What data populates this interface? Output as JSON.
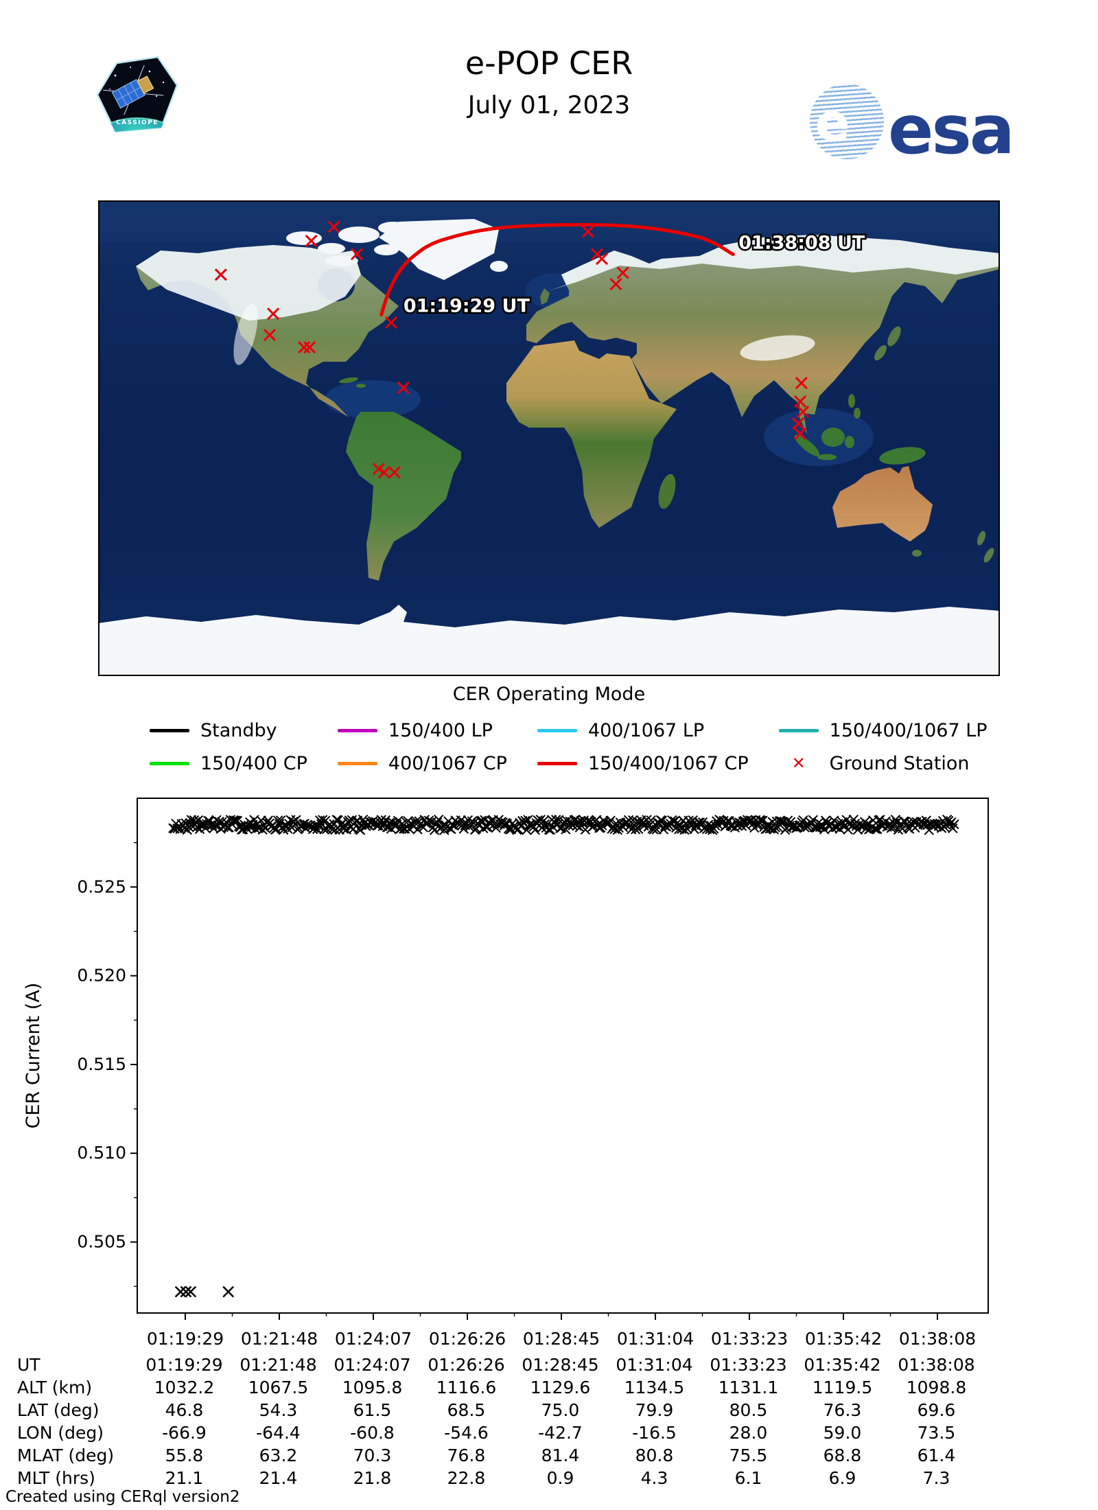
{
  "header": {
    "title": "e-POP CER",
    "date": "July 01, 2023",
    "esa_logo_text": "esa",
    "cassiope_label": "CASSIOPE"
  },
  "map": {
    "start_time_label": "01:19:29 UT",
    "end_time_label": "01:38:08 UT",
    "trajectory_color": "#e80000",
    "station_color": "#e8000b",
    "trajectory_points_latlon": [
      [
        46.8,
        -66.9
      ],
      [
        54.3,
        -64.4
      ],
      [
        61.5,
        -60.8
      ],
      [
        68.5,
        -54.6
      ],
      [
        75.0,
        -42.7
      ],
      [
        79.9,
        -16.5
      ],
      [
        80.5,
        28.0
      ],
      [
        76.3,
        59.0
      ],
      [
        69.6,
        73.5
      ]
    ],
    "ground_stations_latlon": [
      [
        80.0,
        -85.9
      ],
      [
        74.7,
        -94.9
      ],
      [
        69.7,
        -76.7
      ],
      [
        61.9,
        -131.0
      ],
      [
        47.1,
        -110.1
      ],
      [
        39.1,
        -111.5
      ],
      [
        34.4,
        -97.8
      ],
      [
        34.4,
        -95.6
      ],
      [
        43.8,
        -63.0
      ],
      [
        19.1,
        -58.1
      ],
      [
        -11.6,
        -68.0
      ],
      [
        -12.9,
        -65.8
      ],
      [
        -12.9,
        -61.7
      ],
      [
        78.2,
        15.6
      ],
      [
        69.6,
        19.2
      ],
      [
        67.9,
        21.1
      ],
      [
        62.6,
        29.5
      ],
      [
        58.3,
        26.7
      ],
      [
        20.9,
        100.8
      ],
      [
        13.9,
        100.3
      ],
      [
        10.0,
        101.4
      ],
      [
        5.6,
        99.5
      ],
      [
        1.7,
        100.3
      ]
    ]
  },
  "legend": {
    "title": "CER Operating Mode",
    "entries": [
      {
        "label": "Standby",
        "swatch": "line",
        "color": "#000000"
      },
      {
        "label": "150/400 CP",
        "swatch": "line",
        "color": "#00e000"
      },
      {
        "label": "150/400 LP",
        "swatch": "line",
        "color": "#bf00bf"
      },
      {
        "label": "400/1067 CP",
        "swatch": "line",
        "color": "#ff8519"
      },
      {
        "label": "400/1067 LP",
        "swatch": "line",
        "color": "#2dc9f0"
      },
      {
        "label": "150/400/1067 CP",
        "swatch": "line",
        "color": "#e80000"
      },
      {
        "label": "150/400/1067 LP",
        "swatch": "line",
        "color": "#20b2aa"
      },
      {
        "label": "Ground Station",
        "swatch": "x",
        "color": "#e8000b"
      }
    ]
  },
  "chart_data": {
    "type": "scatter",
    "title": "",
    "xlabel": "",
    "ylabel": "CER Current (A)",
    "marker": "x",
    "marker_color": "#000000",
    "x_tick_labels": [
      "01:19:29",
      "01:21:48",
      "01:24:07",
      "01:26:26",
      "01:28:45",
      "01:31:04",
      "01:33:23",
      "01:35:42",
      "01:38:08"
    ],
    "x_range_ut": [
      "01:19:29",
      "01:38:08"
    ],
    "y_tick_values": [
      0.525,
      0.52,
      0.515,
      0.51,
      0.505
    ],
    "ylim": [
      0.501,
      0.53
    ],
    "grid": false,
    "band": {
      "description": "dense row of x-markers (standby current samples)",
      "y_A": 0.5285,
      "spread_A": 0.0003,
      "ut_start": "01:19:11",
      "ut_end": "01:38:35",
      "n_markers": 560
    },
    "outliers": [
      {
        "ut": "01:19:22",
        "y_A": 0.5022
      },
      {
        "ut": "01:19:30",
        "y_A": 0.5022
      },
      {
        "ut": "01:19:37",
        "y_A": 0.5022
      },
      {
        "ut": "01:20:33",
        "y_A": 0.5022
      }
    ]
  },
  "table": {
    "rows": [
      {
        "label": "UT",
        "values": [
          "01:19:29",
          "01:21:48",
          "01:24:07",
          "01:26:26",
          "01:28:45",
          "01:31:04",
          "01:33:23",
          "01:35:42",
          "01:38:08"
        ]
      },
      {
        "label": "ALT (km)",
        "values": [
          "1032.2",
          "1067.5",
          "1095.8",
          "1116.6",
          "1129.6",
          "1134.5",
          "1131.1",
          "1119.5",
          "1098.8"
        ]
      },
      {
        "label": "LAT (deg)",
        "values": [
          "46.8",
          "54.3",
          "61.5",
          "68.5",
          "75.0",
          "79.9",
          "80.5",
          "76.3",
          "69.6"
        ]
      },
      {
        "label": "LON (deg)",
        "values": [
          "-66.9",
          "-64.4",
          "-60.8",
          "-54.6",
          "-42.7",
          "-16.5",
          "28.0",
          "59.0",
          "73.5"
        ]
      },
      {
        "label": "MLAT (deg)",
        "values": [
          "55.8",
          "63.2",
          "70.3",
          "76.8",
          "81.4",
          "80.8",
          "75.5",
          "68.8",
          "61.4"
        ]
      },
      {
        "label": "MLT (hrs)",
        "values": [
          "21.1",
          "21.4",
          "21.8",
          "22.8",
          "0.9",
          "4.3",
          "6.1",
          "6.9",
          "7.3"
        ]
      }
    ]
  },
  "footer": {
    "credit": "Created using CERql version2"
  }
}
